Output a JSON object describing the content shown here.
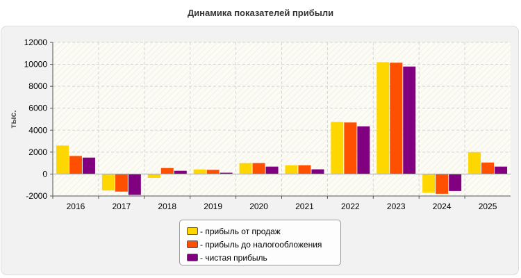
{
  "title": "Динамика показателей прибыли",
  "chart_data": {
    "type": "bar",
    "title": "Динамика показателей прибыли",
    "ylabel": "тыс.",
    "xlabel": "",
    "ylim": [
      -2000,
      12000
    ],
    "yticks": [
      -2000,
      0,
      2000,
      4000,
      6000,
      8000,
      10000,
      12000
    ],
    "grid": true,
    "legend_position": "bottom",
    "categories": [
      "2016",
      "2017",
      "2018",
      "2019",
      "2020",
      "2021",
      "2022",
      "2023",
      "2024",
      "2025"
    ],
    "series": [
      {
        "name": "- прибыль от продаж",
        "color": "#ffd700",
        "values": [
          2600,
          -1500,
          -350,
          420,
          1000,
          800,
          4750,
          10200,
          -1700,
          2000
        ]
      },
      {
        "name": "- прибыль до налогообложения",
        "color": "#ff4f00",
        "values": [
          1650,
          -1600,
          550,
          380,
          1000,
          800,
          4700,
          10150,
          -1800,
          1050
        ]
      },
      {
        "name": "- чистая прибыль",
        "color": "#800080",
        "values": [
          1500,
          -1900,
          300,
          120,
          680,
          430,
          4350,
          9800,
          -1550,
          680
        ]
      }
    ]
  }
}
